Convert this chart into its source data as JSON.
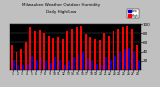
{
  "title": "Milwaukee Weather Outdoor Humidity",
  "subtitle": "Daily High/Low",
  "high_values": [
    55,
    40,
    45,
    60,
    95,
    85,
    88,
    82,
    75,
    70,
    72,
    68,
    85,
    90,
    95,
    96,
    78,
    72,
    68,
    65,
    80,
    75,
    85,
    90,
    95,
    96,
    90,
    55
  ],
  "low_values": [
    22,
    10,
    10,
    12,
    30,
    22,
    25,
    20,
    15,
    28,
    22,
    10,
    18,
    28,
    35,
    40,
    25,
    20,
    12,
    10,
    28,
    22,
    30,
    38,
    45,
    48,
    40,
    20
  ],
  "x_labels": [
    "1",
    "2",
    "3",
    "4",
    "5",
    "6",
    "7",
    "8",
    "9",
    "10",
    "11",
    "12",
    "13",
    "14",
    "15",
    "16",
    "17",
    "18",
    "19",
    "20",
    "21",
    "22",
    "23",
    "24",
    "25",
    "26",
    "27",
    "28"
  ],
  "high_color": "#FF0000",
  "low_color": "#0000CC",
  "bg_color": "#C0C0C0",
  "plot_bg": "#000000",
  "ylim": [
    0,
    100
  ],
  "yticks": [
    20,
    40,
    60,
    80,
    100
  ],
  "bar_width": 0.42,
  "legend_high": "High",
  "legend_low": "Low"
}
